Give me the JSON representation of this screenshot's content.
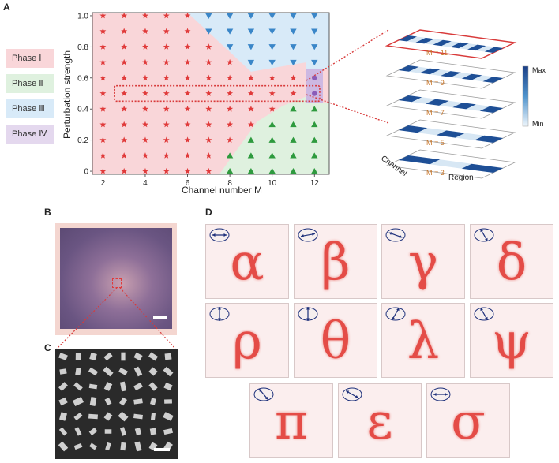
{
  "panels": {
    "a": "A",
    "b": "B",
    "c": "C",
    "d": "D"
  },
  "legend": [
    {
      "label": "Phase Ⅰ",
      "color": "#f9d6d9"
    },
    {
      "label": "Phase Ⅱ",
      "color": "#dff1df"
    },
    {
      "label": "Phase Ⅲ",
      "color": "#d8eaf8"
    },
    {
      "label": "Phase Ⅳ",
      "color": "#e4d8ee"
    }
  ],
  "chart_data": {
    "type": "scatter",
    "xlabel": "Channel number M",
    "ylabel": "Perturbation strength",
    "xlim": [
      1.5,
      12.7
    ],
    "ylim": [
      -0.02,
      1.02
    ],
    "xticks": [
      2,
      4,
      6,
      8,
      10,
      12
    ],
    "yticks": [
      0,
      0.2,
      0.4,
      0.6,
      0.8,
      1.0
    ],
    "x_values": [
      2,
      3,
      4,
      5,
      6,
      7,
      8,
      9,
      10,
      11,
      12
    ],
    "y_values": [
      0,
      0.1,
      0.2,
      0.3,
      0.4,
      0.5,
      0.6,
      0.7,
      0.8,
      0.9,
      1.0
    ],
    "phase_by_column": {
      "2": [
        "I",
        "I",
        "I",
        "I",
        "I",
        "I",
        "I",
        "I",
        "I",
        "I",
        "I"
      ],
      "3": [
        "I",
        "I",
        "I",
        "I",
        "I",
        "I",
        "I",
        "I",
        "I",
        "I",
        "I"
      ],
      "4": [
        "I",
        "I",
        "I",
        "I",
        "I",
        "I",
        "I",
        "I",
        "I",
        "I",
        "I"
      ],
      "5": [
        "I",
        "I",
        "I",
        "I",
        "I",
        "I",
        "I",
        "I",
        "I",
        "I",
        "I"
      ],
      "6": [
        "I",
        "I",
        "I",
        "I",
        "I",
        "I",
        "I",
        "I",
        "I",
        "I",
        "I"
      ],
      "7": [
        "I",
        "I",
        "I",
        "I",
        "I",
        "I",
        "I",
        "I",
        "I",
        "III",
        "III"
      ],
      "8": [
        "II",
        "II",
        "I",
        "I",
        "I",
        "I",
        "I",
        "I",
        "III",
        "III",
        "III"
      ],
      "9": [
        "II",
        "II",
        "II",
        "I",
        "I",
        "I",
        "I",
        "III",
        "III",
        "III",
        "III"
      ],
      "10": [
        "II",
        "II",
        "II",
        "II",
        "I",
        "I",
        "I",
        "III",
        "III",
        "III",
        "III"
      ],
      "11": [
        "II",
        "II",
        "II",
        "II",
        "II",
        "I",
        "I",
        "III",
        "III",
        "III",
        "III"
      ],
      "12": [
        "II",
        "II",
        "II",
        "II",
        "II",
        "IV",
        "IV",
        "III",
        "III",
        "III",
        "III"
      ]
    },
    "marker_colors": {
      "I": "#e03a3a",
      "II": "#2e9a3e",
      "III": "#3a86c8",
      "IV": "#8a5cb8"
    }
  },
  "stack": {
    "labels": [
      "M = 11",
      "M = 9",
      "M = 7",
      "M = 5",
      "M = 3"
    ],
    "axis_channel": "Channel",
    "axis_region": "Region",
    "colorbar_max": "Max",
    "colorbar_min": "Min"
  },
  "letters": [
    "α",
    "β",
    "γ",
    "δ",
    "ρ",
    "θ",
    "λ",
    "ψ",
    "π",
    "ε",
    "σ"
  ],
  "polarization_angles": [
    0,
    10,
    160,
    120,
    90,
    90,
    60,
    120,
    130,
    150,
    0
  ]
}
